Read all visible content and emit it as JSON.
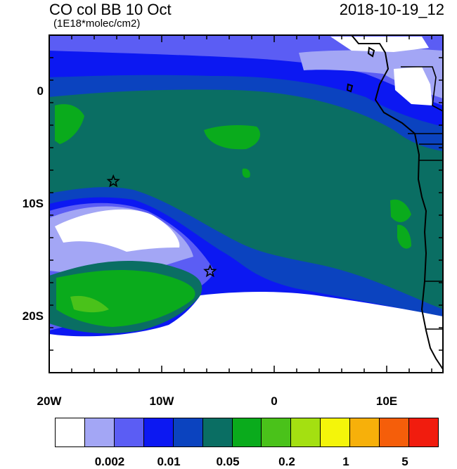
{
  "header": {
    "title": "CO col BB 10 Oct",
    "subtitle": "(1E18*molec/cm2)",
    "datetime": "2018-10-19_12"
  },
  "map": {
    "lat_labels": [
      "0",
      "10S",
      "20S"
    ],
    "lon_labels": [
      "20W",
      "10W",
      "0",
      "10E"
    ],
    "lon_range_deg": [
      -20,
      15
    ],
    "lat_range_deg": [
      -25,
      5
    ],
    "markers": [
      {
        "name": "star",
        "lon": -14.3,
        "lat": -8.0
      },
      {
        "name": "star",
        "lon": -5.7,
        "lat": -16.0
      }
    ]
  },
  "colorbar": {
    "colors": [
      "#ffffff",
      "#a3a6f5",
      "#5b5df4",
      "#0c18f2",
      "#0b43bf",
      "#0a6e63",
      "#0aab1c",
      "#4ac21a",
      "#a4e011",
      "#f4f50a",
      "#f7b00a",
      "#f55e0a",
      "#f11c0e"
    ],
    "labels": [
      "0.002",
      "0.01",
      "0.05",
      "0.2",
      "1",
      "5"
    ]
  }
}
